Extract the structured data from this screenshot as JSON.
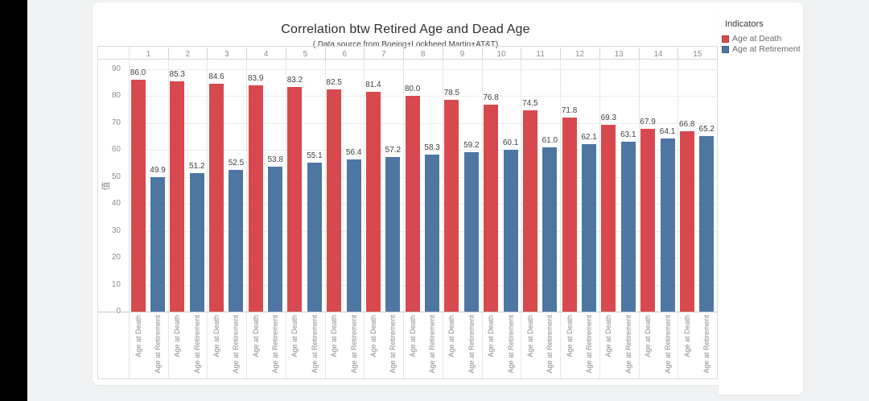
{
  "theme": {
    "page_bg": "#eff1f2",
    "card_bg": "#ffffff",
    "death_color": "#d7494e",
    "retirement_color": "#4e76a3"
  },
  "chart_data": {
    "type": "bar",
    "title": "Correlation btw Retired Age and Dead Age",
    "subtitle": "( Data source from Boeing+Lockheed Martin+AT&T)",
    "categories": [
      "1",
      "2",
      "3",
      "4",
      "5",
      "6",
      "7",
      "8",
      "9",
      "10",
      "11",
      "12",
      "13",
      "14",
      "15"
    ],
    "series": [
      {
        "name": "Age at Death",
        "color": "#d7494e",
        "values": [
          86.0,
          85.3,
          84.6,
          83.9,
          83.2,
          82.5,
          81.4,
          80.0,
          78.5,
          76.8,
          74.5,
          71.8,
          69.3,
          67.9,
          66.8
        ]
      },
      {
        "name": "Age at Retirement",
        "color": "#4e76a3",
        "values": [
          49.9,
          51.2,
          52.5,
          53.8,
          55.1,
          56.4,
          57.2,
          58.3,
          59.2,
          60.1,
          61.0,
          62.1,
          63.1,
          64.1,
          65.2
        ]
      }
    ],
    "ylabel": "值",
    "y_ticks": [
      0,
      10,
      20,
      30,
      40,
      50,
      60,
      70,
      80,
      90
    ],
    "ylim": [
      0,
      93
    ],
    "grid": true,
    "bar_labels": true,
    "bar_label_format": "0.0",
    "legend": {
      "title": "Indicators",
      "position": "top-right",
      "entries": [
        "Age at Death",
        "Age at Retirement"
      ]
    }
  }
}
